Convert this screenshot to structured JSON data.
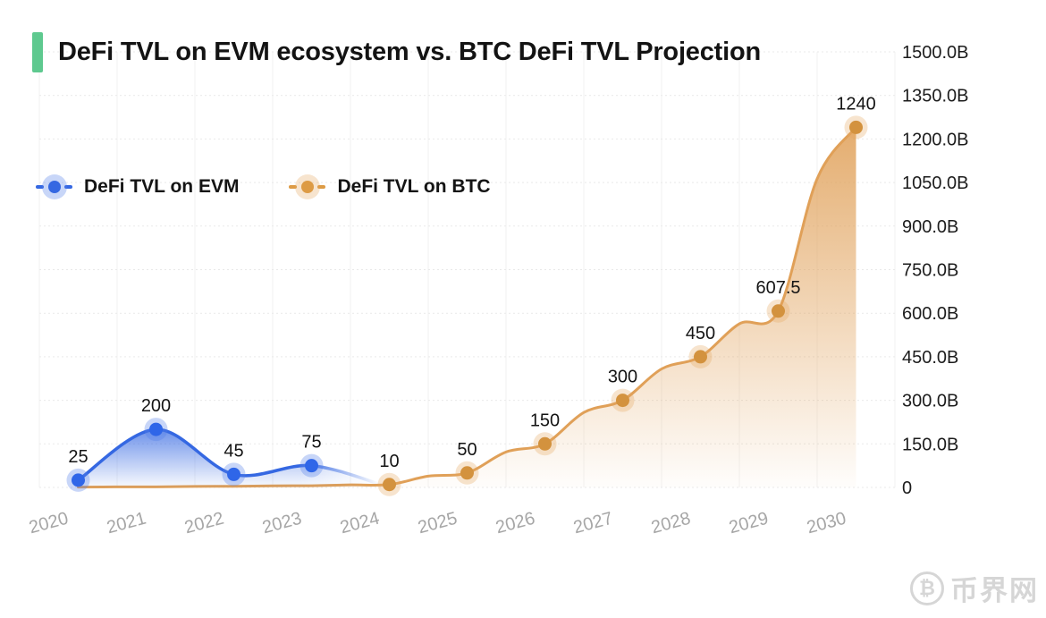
{
  "title": {
    "text": "DeFi TVL on EVM ecosystem vs. BTC DeFi TVL Projection",
    "accent_color": "#5ec98f"
  },
  "legend": {
    "items": [
      {
        "label": "DeFi TVL on EVM",
        "color": "#3568e2",
        "halo": "rgba(83,127,233,0.32)"
      },
      {
        "label": "DeFi TVL on BTC",
        "color": "#dd9b45",
        "halo": "rgba(229,166,92,0.30)"
      }
    ]
  },
  "watermark": {
    "symbol": "₿",
    "text": "币界网",
    "color": "#d6d6d6"
  },
  "chart_data": {
    "type": "line",
    "title": "DeFi TVL on EVM ecosystem vs. BTC DeFi TVL Projection",
    "x_categories": [
      "2020",
      "2021",
      "2022",
      "2023",
      "2024",
      "2025",
      "2026",
      "2027",
      "2028",
      "2029",
      "2030"
    ],
    "xlabel": "",
    "ylabel": "",
    "ylim": [
      0,
      1500
    ],
    "ytick_values": [
      0,
      150,
      300,
      450,
      600,
      750,
      900,
      1050,
      1200,
      1350,
      1500
    ],
    "ytick_labels": [
      "0",
      "150.0B",
      "300.0B",
      "450.0B",
      "600.0B",
      "750.0B",
      "900.0B",
      "1050.0B",
      "1200.0B",
      "1350.0B",
      "1500.0B"
    ],
    "grid": true,
    "legend_position": "top-left",
    "series": [
      {
        "name": "DeFi TVL on EVM",
        "type": "smoothed area line",
        "curve": "smooth",
        "color": "#3568e2",
        "point_color": "#2f66e8",
        "halo_color": "rgba(83,127,233,0.32)",
        "values": [
          25,
          200,
          45,
          75,
          null,
          null,
          null,
          null,
          null,
          null,
          null
        ],
        "point_labels": [
          "25",
          "200",
          "45",
          "75",
          null,
          null,
          null,
          null,
          null,
          null,
          null
        ],
        "fades_to_zero_at": "2024"
      },
      {
        "name": "DeFi TVL on BTC",
        "type": "smoothed area line",
        "curve": "wavy",
        "color": "#e0a058",
        "point_color": "#d3923e",
        "halo_color": "rgba(229,166,92,0.30)",
        "values": [
          1,
          2,
          4,
          6,
          10,
          50,
          150,
          300,
          450,
          607.5,
          1240
        ],
        "estimated_unlabeled_indices": [
          0,
          1,
          2,
          3
        ],
        "point_labels": [
          null,
          null,
          null,
          null,
          "10",
          "50",
          "150",
          "300",
          "450",
          "607.5",
          "1240"
        ]
      }
    ]
  }
}
